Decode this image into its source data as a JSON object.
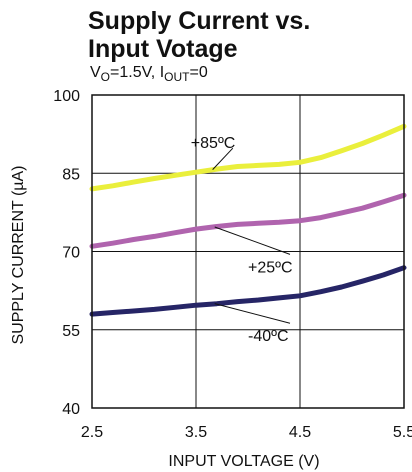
{
  "chart_data": {
    "type": "line",
    "title_lines": [
      "Supply Current vs.",
      "Input Votage"
    ],
    "subtitle_parts": {
      "v": "V",
      "v_sub": "O",
      "v_rest": "=1.5V, I",
      "i_sub": "OUT",
      "i_rest": "=0"
    },
    "xlabel": "INPUT VOLTAGE (V)",
    "ylabel": "SUPPLY CURRENT (µA)",
    "xlim": [
      2.5,
      5.5
    ],
    "ylim": [
      40,
      100
    ],
    "x_ticks": [
      2.5,
      3.5,
      4.5,
      5.5
    ],
    "x_tick_labels": [
      "2.5",
      "3.5",
      "4.5",
      "5.5"
    ],
    "y_ticks": [
      40,
      55,
      70,
      85,
      100
    ],
    "y_tick_labels": [
      "40",
      "55",
      "70",
      "85",
      "100"
    ],
    "grid": true,
    "series": [
      {
        "name": "+85ºC",
        "color": "#eaef3c",
        "x": [
          2.5,
          2.7,
          2.9,
          3.1,
          3.3,
          3.5,
          3.7,
          3.9,
          4.1,
          4.3,
          4.5,
          4.7,
          4.9,
          5.1,
          5.3,
          5.5
        ],
        "y": [
          82.0,
          82.6,
          83.3,
          84.0,
          84.6,
          85.2,
          85.8,
          86.3,
          86.5,
          86.7,
          87.1,
          88.0,
          89.3,
          90.7,
          92.3,
          94.0
        ]
      },
      {
        "name": "+25ºC",
        "color": "#b064ae",
        "x": [
          2.5,
          2.7,
          2.9,
          3.1,
          3.3,
          3.5,
          3.7,
          3.9,
          4.1,
          4.3,
          4.5,
          4.7,
          4.9,
          5.1,
          5.3,
          5.5
        ],
        "y": [
          71.0,
          71.6,
          72.3,
          72.9,
          73.6,
          74.3,
          74.8,
          75.2,
          75.4,
          75.6,
          75.9,
          76.5,
          77.4,
          78.3,
          79.5,
          80.8
        ]
      },
      {
        "name": "-40ºC",
        "color": "#262566",
        "x": [
          2.5,
          2.7,
          2.9,
          3.1,
          3.3,
          3.5,
          3.7,
          3.9,
          4.1,
          4.3,
          4.5,
          4.7,
          4.9,
          5.1,
          5.3,
          5.5
        ],
        "y": [
          58.0,
          58.3,
          58.6,
          58.9,
          59.3,
          59.7,
          60.0,
          60.4,
          60.7,
          61.1,
          61.5,
          62.3,
          63.2,
          64.3,
          65.5,
          66.9
        ]
      }
    ],
    "annotations": [
      {
        "text": "+85ºC",
        "x": 3.45,
        "y": 89.8,
        "point_x": 3.66,
        "point_y": 85.7
      },
      {
        "text": "+25ºC",
        "x": 4.0,
        "y": 66.0,
        "point_x": 3.68,
        "point_y": 74.7
      },
      {
        "text": "-40ºC",
        "x": 4.0,
        "y": 52.8,
        "point_x": 3.68,
        "point_y": 60.0
      }
    ]
  }
}
